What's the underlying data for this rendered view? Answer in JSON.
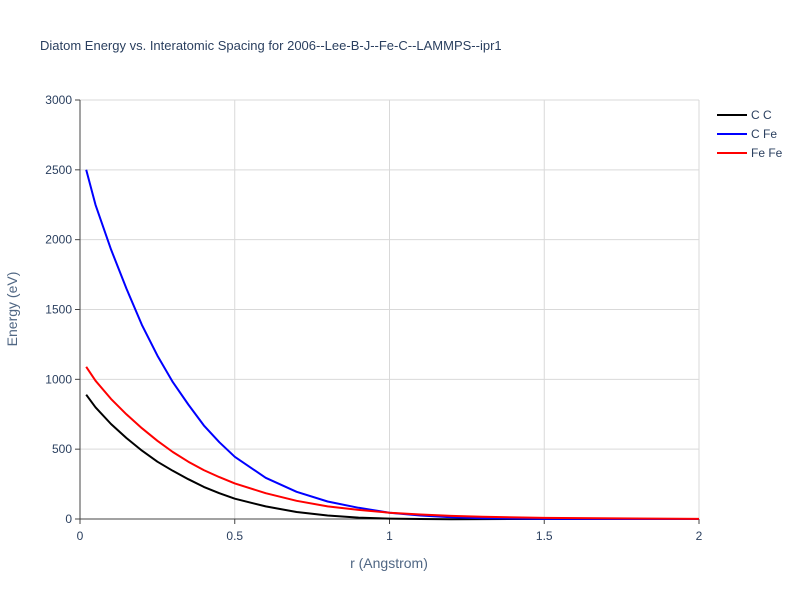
{
  "chart_data": {
    "type": "line",
    "title": "Diatom Energy vs. Interatomic Spacing for 2006--Lee-B-J--Fe-C--LAMMPS--ipr1",
    "xlabel": "r (Angstrom)",
    "ylabel": "Energy (eV)",
    "xlim": [
      0,
      2
    ],
    "ylim": [
      0,
      3000
    ],
    "xticks": [
      0,
      0.5,
      1,
      1.5,
      2
    ],
    "xtick_labels": [
      "0",
      "0.5",
      "1",
      "1.5",
      "2"
    ],
    "yticks": [
      0,
      500,
      1000,
      1500,
      2000,
      2500,
      3000
    ],
    "ytick_labels": [
      "0",
      "500",
      "1000",
      "1500",
      "2000",
      "2500",
      "3000"
    ],
    "grid": true,
    "legend_position": "top-right",
    "series": [
      {
        "name": "C C",
        "color": "#000000",
        "x": [
          0.02,
          0.05,
          0.1,
          0.15,
          0.2,
          0.25,
          0.3,
          0.35,
          0.4,
          0.45,
          0.5,
          0.6,
          0.7,
          0.8,
          0.9,
          1.0,
          1.1,
          1.2,
          1.3,
          1.5,
          2.0
        ],
        "y": [
          890,
          800,
          680,
          580,
          490,
          410,
          345,
          285,
          230,
          185,
          145,
          90,
          50,
          25,
          10,
          3,
          0,
          -2,
          -1,
          0,
          0
        ]
      },
      {
        "name": "C Fe",
        "color": "#0000ff",
        "x": [
          0.02,
          0.05,
          0.1,
          0.15,
          0.2,
          0.25,
          0.3,
          0.35,
          0.4,
          0.45,
          0.5,
          0.6,
          0.7,
          0.8,
          0.9,
          1.0,
          1.1,
          1.2,
          1.3,
          1.5,
          2.0
        ],
        "y": [
          2500,
          2250,
          1930,
          1650,
          1390,
          1170,
          980,
          820,
          670,
          550,
          445,
          295,
          195,
          125,
          80,
          45,
          25,
          12,
          6,
          1,
          0
        ]
      },
      {
        "name": "Fe Fe",
        "color": "#ff0000",
        "x": [
          0.02,
          0.05,
          0.1,
          0.15,
          0.2,
          0.25,
          0.3,
          0.35,
          0.4,
          0.45,
          0.5,
          0.6,
          0.7,
          0.8,
          0.9,
          1.0,
          1.1,
          1.2,
          1.3,
          1.5,
          2.0
        ],
        "y": [
          1090,
          990,
          860,
          750,
          650,
          560,
          480,
          410,
          350,
          300,
          255,
          185,
          130,
          90,
          65,
          45,
          32,
          22,
          16,
          8,
          1
        ]
      }
    ]
  }
}
